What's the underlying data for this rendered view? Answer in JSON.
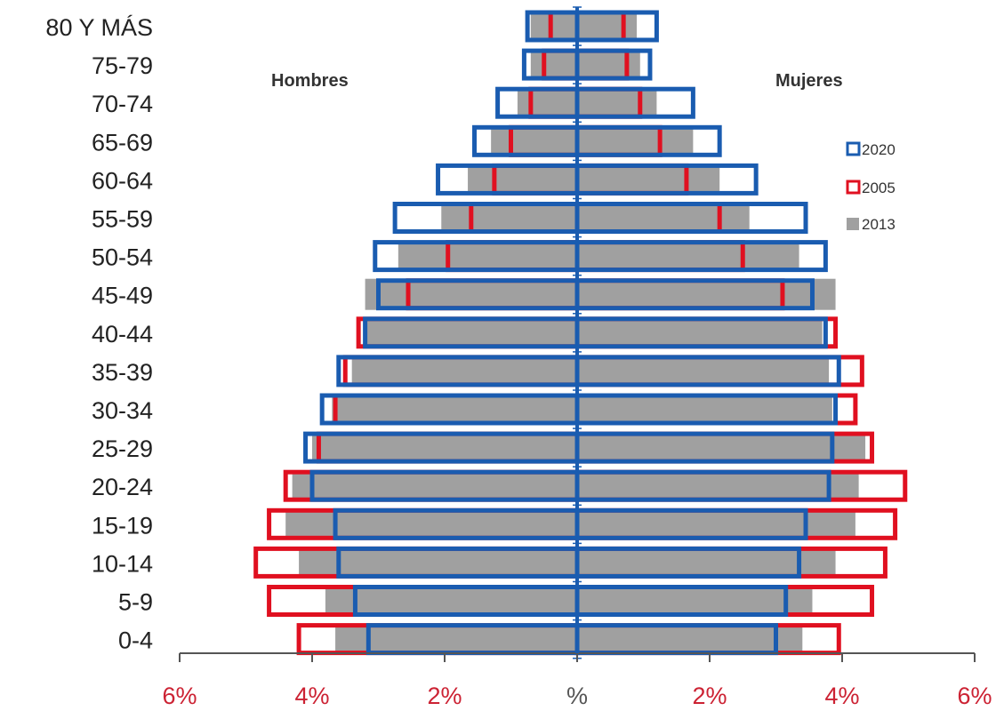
{
  "chart_data": {
    "type": "bar",
    "subtype": "population-pyramid",
    "title": "",
    "side_labels": {
      "left": "Hombres",
      "right": "Mujeres"
    },
    "categories": [
      "80 Y MÁS",
      "75-79",
      "70-74",
      "65-69",
      "60-64",
      "55-59",
      "50-54",
      "45-49",
      "40-44",
      "35-39",
      "30-34",
      "25-29",
      "20-24",
      "15-19",
      "10-14",
      "5-9",
      "0-4"
    ],
    "x_ticks": [
      {
        "value": -6,
        "label": "6%"
      },
      {
        "value": -4,
        "label": "4%"
      },
      {
        "value": -2,
        "label": "2%"
      },
      {
        "value": 0,
        "label": "%"
      },
      {
        "value": 2,
        "label": "2%"
      },
      {
        "value": 4,
        "label": "4%"
      },
      {
        "value": 6,
        "label": "6%"
      }
    ],
    "xlim": [
      -6,
      6
    ],
    "series": [
      {
        "name": "2013",
        "style": "filled",
        "color": "#a0a0a0",
        "male": [
          0.7,
          0.7,
          0.9,
          1.3,
          1.65,
          2.05,
          2.7,
          3.2,
          3.2,
          3.4,
          3.7,
          4.0,
          4.3,
          4.4,
          4.2,
          3.8,
          3.65
        ],
        "female": [
          0.9,
          0.95,
          1.2,
          1.75,
          2.15,
          2.6,
          3.35,
          3.9,
          3.7,
          3.8,
          3.85,
          4.35,
          4.25,
          4.2,
          3.9,
          3.55,
          3.4
        ]
      },
      {
        "name": "2005",
        "style": "outline",
        "color": "#e01020",
        "male": [
          0.4,
          0.5,
          0.7,
          1.0,
          1.25,
          1.6,
          1.95,
          2.55,
          3.3,
          3.5,
          3.65,
          3.9,
          4.4,
          4.65,
          4.85,
          4.65,
          4.2
        ],
        "female": [
          0.7,
          0.75,
          0.95,
          1.25,
          1.65,
          2.15,
          2.5,
          3.1,
          3.9,
          4.3,
          4.2,
          4.45,
          4.95,
          4.8,
          4.65,
          4.45,
          3.95
        ]
      },
      {
        "name": "2020",
        "style": "outline",
        "color": "#1a5cb0",
        "male": [
          0.75,
          0.8,
          1.2,
          1.55,
          2.1,
          2.75,
          3.05,
          3.0,
          3.2,
          3.6,
          3.85,
          4.1,
          4.0,
          3.65,
          3.6,
          3.35,
          3.15
        ],
        "female": [
          1.2,
          1.1,
          1.75,
          2.15,
          2.7,
          3.45,
          3.75,
          3.55,
          3.75,
          3.95,
          3.9,
          3.85,
          3.8,
          3.45,
          3.35,
          3.15,
          3.0
        ]
      }
    ],
    "legend": {
      "position": "right",
      "entries": [
        "2020",
        "2005",
        "2013"
      ]
    }
  },
  "colors": {
    "axis": "#555555",
    "tick_label": "#cc2233",
    "tick_label_zero": "#555555",
    "center_line": "#1a5cb0"
  }
}
